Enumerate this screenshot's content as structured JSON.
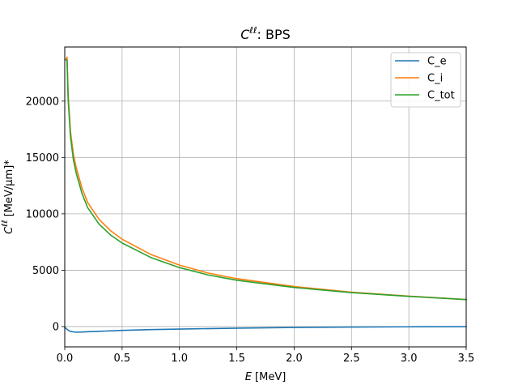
{
  "chart_data": {
    "type": "line",
    "title_main": "C",
    "title_sup": "ℓℓ",
    "title_rest": ": BPS",
    "xlabel_italic": "E",
    "xlabel_rest": " [MeV]",
    "ylabel_main": "C",
    "ylabel_sup": "ℓℓ",
    "ylabel_rest": " [MeV/μm]*",
    "xlim": [
      0,
      3.5
    ],
    "ylim": [
      -1800,
      24800
    ],
    "xticks": [
      0.0,
      0.5,
      1.0,
      1.5,
      2.0,
      2.5,
      3.0,
      3.5
    ],
    "xtick_labels": [
      "0.0",
      "0.5",
      "1.0",
      "1.5",
      "2.0",
      "2.5",
      "3.0",
      "3.5"
    ],
    "yticks": [
      0,
      5000,
      10000,
      15000,
      20000
    ],
    "ytick_labels": [
      "0",
      "5000",
      "10000",
      "15000",
      "20000"
    ],
    "grid": true,
    "legend_position": "top-right",
    "series": [
      {
        "name": "C_e",
        "color": "#1f77b4",
        "x": [
          0.0,
          0.02,
          0.04,
          0.06,
          0.08,
          0.1,
          0.15,
          0.2,
          0.3,
          0.5,
          0.75,
          1.0,
          1.5,
          2.0,
          2.5,
          3.0,
          3.5
        ],
        "y": [
          -50,
          -250,
          -380,
          -450,
          -480,
          -490,
          -480,
          -460,
          -420,
          -340,
          -270,
          -220,
          -140,
          -80,
          -40,
          -20,
          -5
        ]
      },
      {
        "name": "C_i",
        "color": "#ff7f0e",
        "x": [
          0.01,
          0.02,
          0.03,
          0.05,
          0.075,
          0.1,
          0.15,
          0.2,
          0.3,
          0.4,
          0.5,
          0.75,
          1.0,
          1.25,
          1.5,
          2.0,
          2.5,
          3.0,
          3.5
        ],
        "y": [
          23700,
          23900,
          20500,
          17300,
          15300,
          14100,
          12300,
          11000,
          9500,
          8500,
          7750,
          6400,
          5450,
          4750,
          4250,
          3550,
          3050,
          2700,
          2400
        ]
      },
      {
        "name": "C_tot",
        "color": "#2ca02c",
        "x": [
          0.01,
          0.02,
          0.03,
          0.05,
          0.075,
          0.1,
          0.15,
          0.2,
          0.3,
          0.4,
          0.5,
          0.75,
          1.0,
          1.25,
          1.5,
          2.0,
          2.5,
          3.0,
          3.5
        ],
        "y": [
          23650,
          23650,
          20100,
          16850,
          14820,
          13610,
          11820,
          10540,
          9080,
          8120,
          7410,
          6130,
          5230,
          4580,
          4110,
          3470,
          3010,
          2680,
          2395
        ]
      }
    ]
  }
}
